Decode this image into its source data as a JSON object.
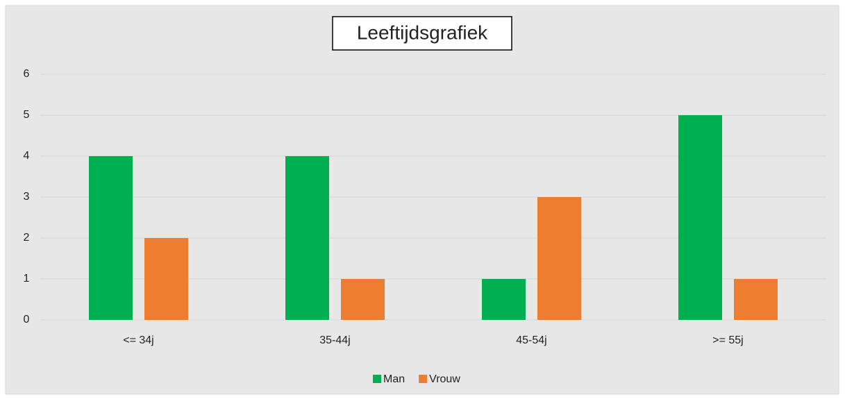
{
  "chart_data": {
    "type": "bar",
    "title": "Leeftijdsgrafiek",
    "categories": [
      "<= 34j",
      "35-44j",
      "45-54j",
      ">= 55j"
    ],
    "series": [
      {
        "name": "Man",
        "color": "#00b050",
        "values": [
          4,
          4,
          1,
          5
        ]
      },
      {
        "name": "Vrouw",
        "color": "#ed7d31",
        "values": [
          2,
          1,
          3,
          1
        ]
      }
    ],
    "ylim": [
      0,
      6
    ],
    "yticks": [
      0,
      1,
      2,
      3,
      4,
      5,
      6
    ],
    "grid": true,
    "legend": "bottom"
  }
}
